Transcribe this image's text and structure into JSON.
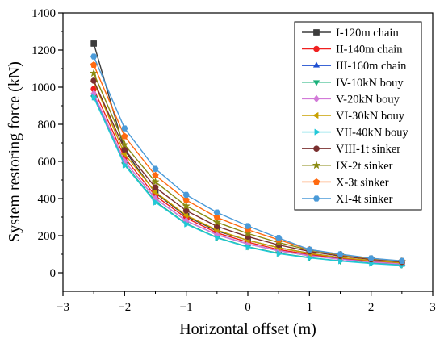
{
  "chart_data": {
    "type": "line",
    "title": "",
    "xlabel": "Horizontal offset (m)",
    "ylabel": "System restoring force (kN)",
    "xlim": [
      -3,
      3
    ],
    "ylim": [
      -100,
      1400
    ],
    "xticks": [
      -3,
      -2,
      -1,
      0,
      1,
      2,
      3
    ],
    "xtick_labels": [
      "−3",
      "−2",
      "−1",
      "0",
      "1",
      "2",
      "3"
    ],
    "yticks": [
      0,
      200,
      400,
      600,
      800,
      1000,
      1200,
      1400
    ],
    "ytick_labels": [
      "0",
      "200",
      "400",
      "600",
      "800",
      "1000",
      "1200",
      "1400"
    ],
    "legend_position": "top-right",
    "x": [
      -2.5,
      -2.0,
      -1.5,
      -1.0,
      -0.5,
      0.0,
      0.5,
      1.0,
      1.5,
      2.0,
      2.5
    ],
    "series": [
      {
        "name": "I-120m chain",
        "color": "#3c3c3c",
        "marker": "square",
        "values": [
          1235,
          660,
          430,
          305,
          225,
          175,
          135,
          105,
          82,
          65,
          50
        ]
      },
      {
        "name": "II-140m chain",
        "color": "#f02020",
        "marker": "circle",
        "values": [
          990,
          620,
          415,
          295,
          215,
          165,
          125,
          98,
          78,
          62,
          50
        ]
      },
      {
        "name": "III-160m chain",
        "color": "#1f4fd0",
        "marker": "triangle-up",
        "values": [
          960,
          600,
          400,
          280,
          205,
          155,
          118,
          92,
          73,
          58,
          47
        ]
      },
      {
        "name": "IV-10kN bouy",
        "color": "#19b07a",
        "marker": "triangle-down",
        "values": [
          945,
          585,
          385,
          265,
          190,
          140,
          105,
          82,
          64,
          52,
          42
        ]
      },
      {
        "name": "V-20kN bouy",
        "color": "#d27ad8",
        "marker": "diamond",
        "values": [
          965,
          600,
          400,
          280,
          205,
          155,
          118,
          92,
          72,
          58,
          47
        ]
      },
      {
        "name": "VI-30kN bouy",
        "color": "#c8a000",
        "marker": "triangle-left",
        "values": [
          1030,
          640,
          435,
          310,
          230,
          175,
          135,
          104,
          82,
          66,
          53
        ]
      },
      {
        "name": "VII-40kN bouy",
        "color": "#22c8d8",
        "marker": "triangle-right",
        "values": [
          945,
          580,
          380,
          262,
          188,
          138,
          103,
          80,
          63,
          50,
          40
        ]
      },
      {
        "name": "VIII-1t sinker",
        "color": "#7a2f2f",
        "marker": "circle",
        "values": [
          1035,
          665,
          460,
          335,
          250,
          195,
          150,
          115,
          90,
          72,
          58
        ]
      },
      {
        "name": "IX-2t sinker",
        "color": "#8a8a10",
        "marker": "star",
        "values": [
          1075,
          690,
          490,
          360,
          272,
          212,
          163,
          122,
          96,
          76,
          61
        ]
      },
      {
        "name": "X-3t sinker",
        "color": "#ff6a10",
        "marker": "pentagon",
        "values": [
          1120,
          735,
          525,
          392,
          298,
          232,
          178,
          125,
          98,
          77,
          63
        ]
      },
      {
        "name": "XI-4t sinker",
        "color": "#4a9ad8",
        "marker": "hexagon",
        "values": [
          1165,
          778,
          560,
          420,
          325,
          252,
          188,
          125,
          100,
          78,
          64
        ]
      }
    ]
  }
}
